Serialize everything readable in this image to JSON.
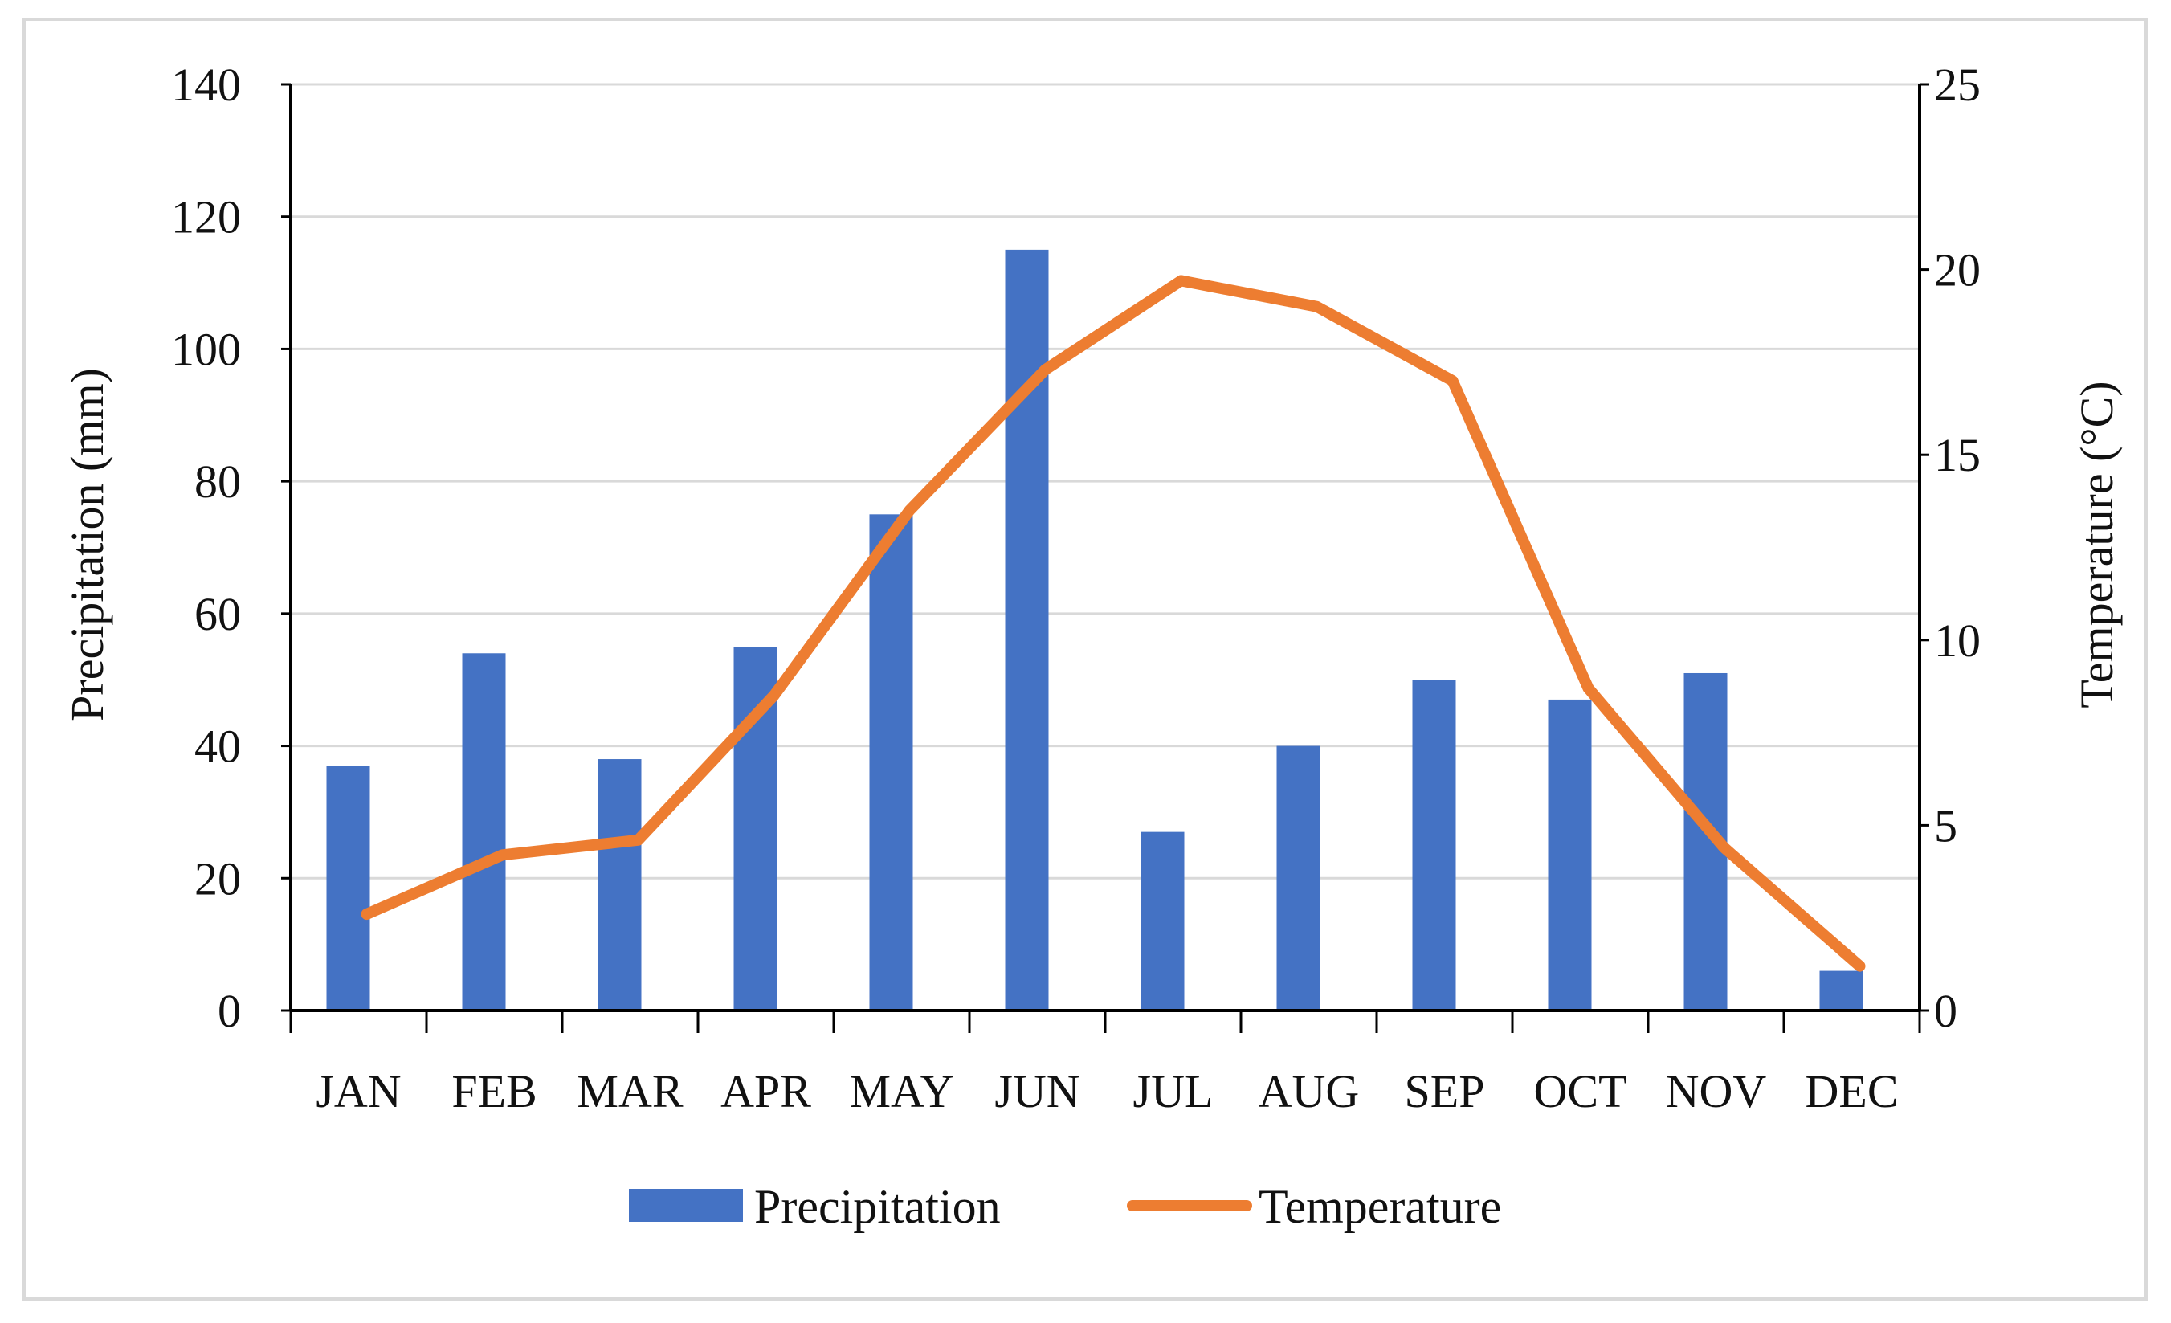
{
  "chart_data": {
    "type": "bar",
    "categories": [
      "JAN",
      "FEB",
      "MAR",
      "APR",
      "MAY",
      "JUN",
      "JUL",
      "AUG",
      "SEP",
      "OCT",
      "NOV",
      "DEC"
    ],
    "series": [
      {
        "name": "Precipitation",
        "type": "bar",
        "axis": "left",
        "color": "#4472c4",
        "values": [
          37,
          54,
          38,
          55,
          75,
          115,
          27,
          40,
          50,
          47,
          51,
          6
        ]
      },
      {
        "name": "Temperature",
        "type": "line",
        "axis": "right",
        "color": "#ed7d31",
        "values": [
          2.6,
          4.2,
          4.6,
          8.5,
          13.5,
          17.3,
          19.7,
          19.0,
          17.0,
          8.7,
          4.4,
          1.2
        ]
      }
    ],
    "ylabel": "Precipitation (mm)",
    "ylim": [
      0,
      140
    ],
    "yticks": [
      0,
      20,
      40,
      60,
      80,
      100,
      120,
      140
    ],
    "y2label": "Temperature (°C)",
    "y2lim": [
      0,
      25
    ],
    "y2ticks": [
      0,
      5,
      10,
      15,
      20,
      25
    ],
    "grid": true,
    "legend_position": "bottom"
  }
}
